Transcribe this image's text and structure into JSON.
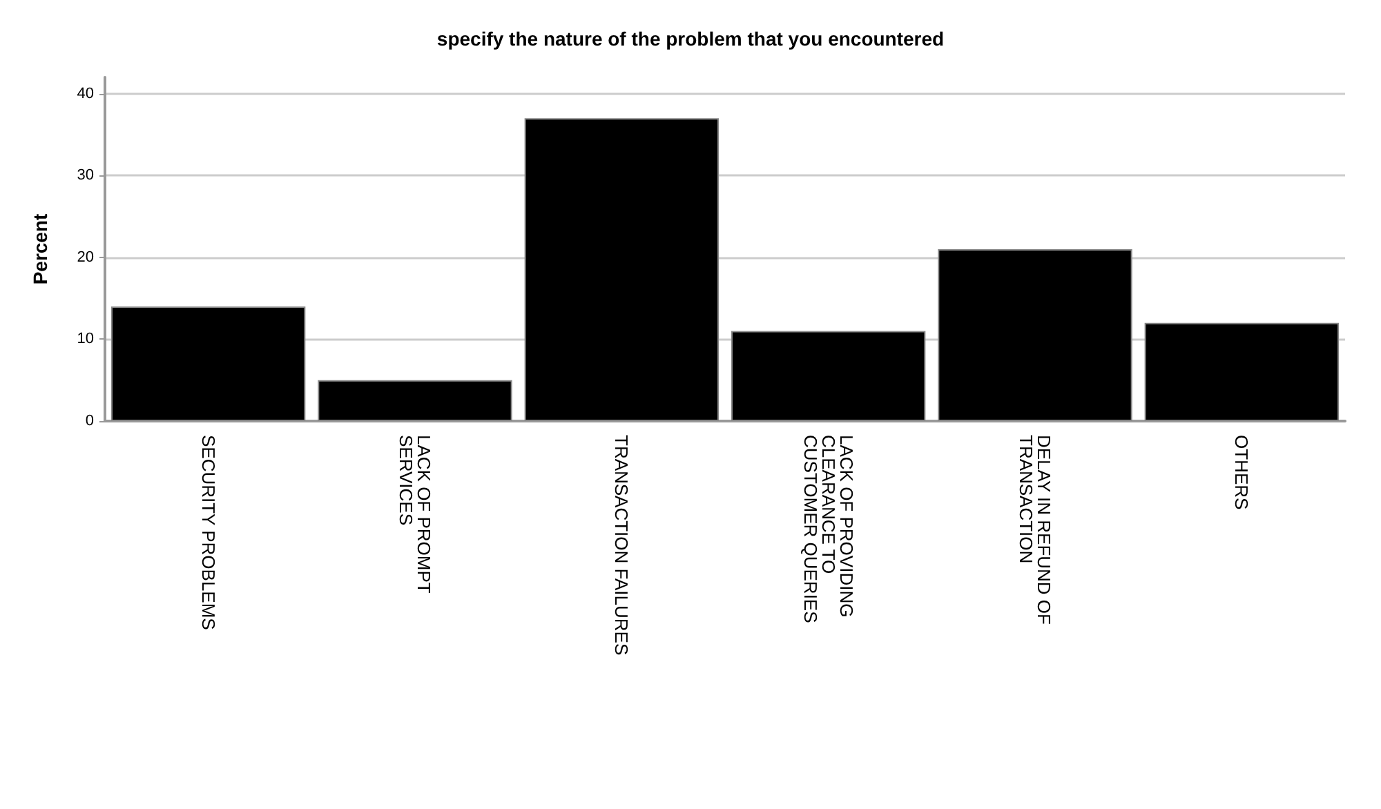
{
  "chart_data": {
    "type": "bar",
    "title": "specify the nature of the problem that you encountered",
    "ylabel": "Percent",
    "categories": [
      "SECURITY PROBLEMS",
      "LACK OF PROMPT SERVICES",
      "TRANSACTION FAILURES",
      "LACK OF PROVIDING CLEARANCE TO CUSTOMER QUERIES",
      "DELAY IN REFUND OF TRANSACTION",
      "OTHERS"
    ],
    "values": [
      14,
      5,
      37,
      11,
      21,
      12
    ],
    "color": "#000000",
    "ylim": [
      0,
      42
    ],
    "yticks": [
      0,
      10,
      20,
      30,
      40
    ],
    "grid": "y"
  }
}
